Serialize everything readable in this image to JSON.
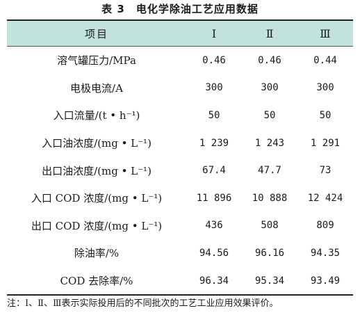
{
  "caption": "表 3　电化学除油工艺应用数据",
  "columns": [
    "项目",
    "Ⅰ",
    "Ⅱ",
    "Ⅲ"
  ],
  "rows": [
    {
      "item": "溶气罐压力/MPa",
      "v1": "0.46",
      "v2": "0.46",
      "v3": "0.44"
    },
    {
      "item": "电极电流/A",
      "v1": "300",
      "v2": "300",
      "v3": "300"
    },
    {
      "item": "入口流量/(t • h⁻¹)",
      "v1": "50",
      "v2": "50",
      "v3": "50"
    },
    {
      "item": "入口油浓度/(mg • L⁻¹)",
      "v1": "1 239",
      "v2": "1 243",
      "v3": "1 291"
    },
    {
      "item": "出口油浓度/(mg • L⁻¹)",
      "v1": "67.4",
      "v2": "47.7",
      "v3": "73"
    },
    {
      "item": "入口 COD 浓度/(mg • L⁻¹)",
      "v1": "11 896",
      "v2": "10 888",
      "v3": "12 424"
    },
    {
      "item": "出口 COD 浓度/(mg • L⁻¹)",
      "v1": "436",
      "v2": "508",
      "v3": "809"
    },
    {
      "item": "除油率/%",
      "v1": "94.56",
      "v2": "96.16",
      "v3": "94.35"
    },
    {
      "item": "COD 去除率/%",
      "v1": "96.34",
      "v2": "95.34",
      "v3": "93.49"
    }
  ],
  "note": "注：Ⅰ、Ⅱ、Ⅲ表示实际投用后的不同批次的工艺工业应用效果评价。"
}
